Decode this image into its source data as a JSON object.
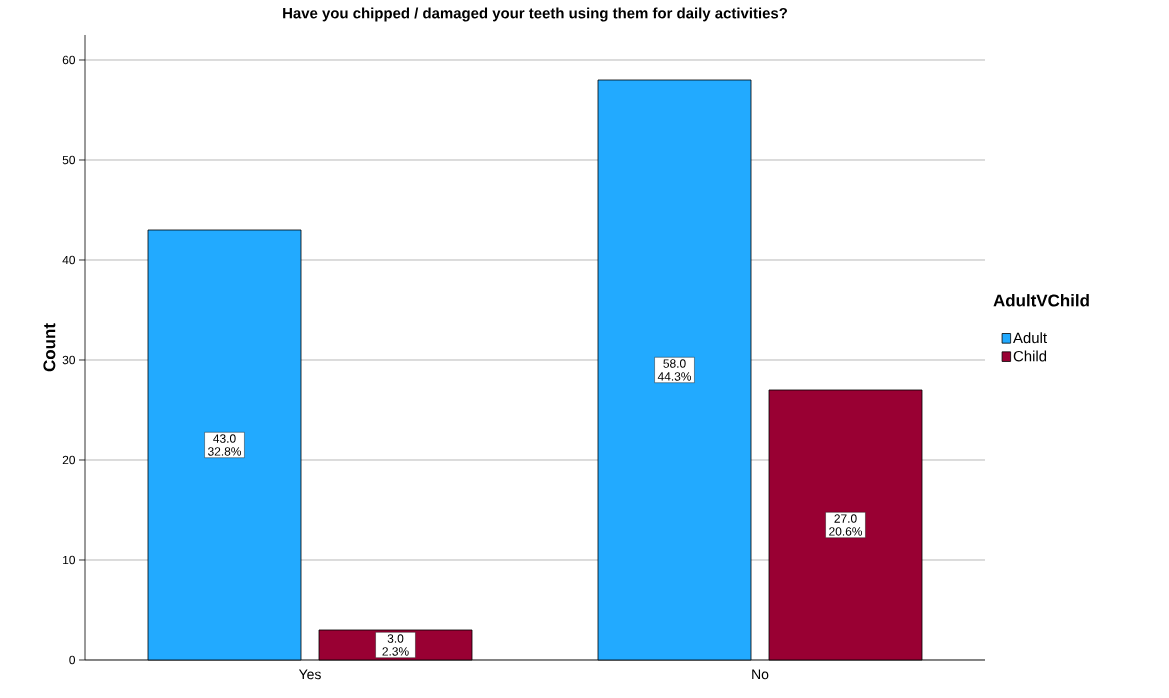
{
  "chart_data": {
    "type": "bar",
    "title": "Have you chipped / damaged your teeth using them for daily activities?",
    "ylabel": "Count",
    "legend_title": "AdultVChild",
    "categories": [
      "Yes",
      "No"
    ],
    "series": [
      {
        "name": "Adult",
        "color": "#22aaff",
        "values": [
          43,
          58
        ],
        "value_labels": [
          "43.0 32.8%",
          "58.0 44.3%"
        ]
      },
      {
        "name": "Child",
        "color": "#990033",
        "values": [
          3,
          27
        ],
        "value_labels": [
          "3.0 2.3%",
          "27.0 20.6%"
        ]
      }
    ],
    "ylim": [
      0,
      62.5
    ],
    "yticks": [
      0,
      10,
      20,
      30,
      40,
      50,
      60
    ],
    "grid": "y",
    "legend": "right"
  }
}
